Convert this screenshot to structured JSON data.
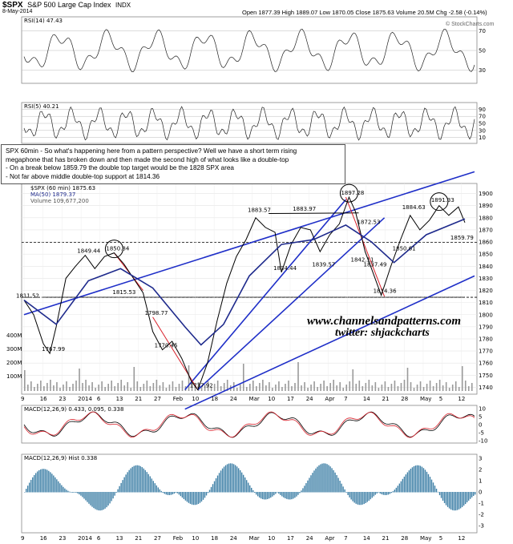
{
  "header": {
    "symbol": "$SPX",
    "name": "S&P 500 Large Cap Index",
    "exchange": "INDX",
    "date": "8-May-2014",
    "quote": "Open 1877.39  High 1889.07  Low 1870.05  Close 1875.63  Volume 20.5M  Chg -2.58 (-0.14%)",
    "copyright": "© StockCharts.com"
  },
  "panels": {
    "rsi14": "RSI(14) 47.43",
    "rsi5": "RSI(5) 40.21",
    "price_legend": "$SPX (60 min) 1875.63",
    "ma_legend": "MA(50) 1879.37",
    "vol_legend": "Volume 109,677,200",
    "macd_legend": "MACD(12,26,9) 0.433, 0.095, 0.338",
    "hist_legend": "MACD(12,26,9) Hist 0.338"
  },
  "annotation": {
    "line1": "SPX 60min - So what's happening here from a pattern perspective? Well we have a short term rising",
    "line2": "megaphone that has broken down and then made the second high of what looks like a double-top",
    "line3": "- On a break below 1859.79 the double top target would be the 1828 SPX area",
    "line4": "- Not far above middle double-top support at 1814.36"
  },
  "watermark": {
    "site": "www.channelsandpatterns.com",
    "twitter": "twitter: shjackcharts"
  },
  "colors": {
    "price": "#000000",
    "ma": "#1e2a8c",
    "trend": "#1f2fc8",
    "red": "#d9202a",
    "rsi_green": "#3b7d3b",
    "rsi_red": "#8a3d3d",
    "hist": "#3d7fa6"
  },
  "chart_data": {
    "type": "line",
    "title": "$SPX (60 min)",
    "price_axis": [
      "1900",
      "1890",
      "1880",
      "1870",
      "1860",
      "1850",
      "1840",
      "1830",
      "1820",
      "1810",
      "1800",
      "1790",
      "1780",
      "1770",
      "1760",
      "1750",
      "1740"
    ],
    "ylim": [
      1737,
      1905
    ],
    "x_ticks": [
      "9",
      "16",
      "23",
      "2014",
      "6",
      "13",
      "21",
      "27",
      "Feb",
      "10",
      "18",
      "24",
      "Mar",
      "10",
      "17",
      "24",
      "Apr",
      "7",
      "14",
      "21",
      "28",
      "May",
      "5",
      "12"
    ],
    "price_labels": [
      "1811.52",
      "1849.44",
      "1850.84",
      "1815.53",
      "1798.77",
      "1770.45",
      "1767.99",
      "1737.92",
      "1883.57",
      "1883.97",
      "1897.28",
      "1834.44",
      "1839.57",
      "1842.11",
      "1872.53",
      "1837.49",
      "1814.36",
      "1850.61",
      "1884.63",
      "1891.33",
      "1859.79"
    ],
    "volume_axis": [
      "400M",
      "300M",
      "200M",
      "100M"
    ],
    "rsi_levels": [
      "70",
      "50",
      "30"
    ],
    "rsi5_levels": [
      "90",
      "70",
      "50",
      "30",
      "10"
    ],
    "macd_axis": [
      "10",
      "5",
      "0",
      "-5",
      "-10"
    ],
    "hist_axis": [
      "3",
      "2",
      "1",
      "0",
      "-1",
      "-2",
      "-3"
    ],
    "price_series": [
      {
        "x": 0,
        "y": 1812
      },
      {
        "x": 3,
        "y": 1800
      },
      {
        "x": 6,
        "y": 1776
      },
      {
        "x": 8,
        "y": 1768
      },
      {
        "x": 10,
        "y": 1790
      },
      {
        "x": 13,
        "y": 1830
      },
      {
        "x": 16,
        "y": 1840
      },
      {
        "x": 19,
        "y": 1849
      },
      {
        "x": 22,
        "y": 1838
      },
      {
        "x": 25,
        "y": 1848
      },
      {
        "x": 28,
        "y": 1851
      },
      {
        "x": 31,
        "y": 1842
      },
      {
        "x": 34,
        "y": 1830
      },
      {
        "x": 37,
        "y": 1818
      },
      {
        "x": 40,
        "y": 1786
      },
      {
        "x": 43,
        "y": 1771
      },
      {
        "x": 46,
        "y": 1778
      },
      {
        "x": 49,
        "y": 1764
      },
      {
        "x": 52,
        "y": 1745
      },
      {
        "x": 54,
        "y": 1738
      },
      {
        "x": 57,
        "y": 1760
      },
      {
        "x": 60,
        "y": 1795
      },
      {
        "x": 63,
        "y": 1826
      },
      {
        "x": 66,
        "y": 1848
      },
      {
        "x": 69,
        "y": 1862
      },
      {
        "x": 72,
        "y": 1880
      },
      {
        "x": 75,
        "y": 1872
      },
      {
        "x": 78,
        "y": 1868
      },
      {
        "x": 80,
        "y": 1835
      },
      {
        "x": 83,
        "y": 1858
      },
      {
        "x": 86,
        "y": 1872
      },
      {
        "x": 89,
        "y": 1870
      },
      {
        "x": 92,
        "y": 1852
      },
      {
        "x": 95,
        "y": 1866
      },
      {
        "x": 98,
        "y": 1875
      },
      {
        "x": 101,
        "y": 1897
      },
      {
        "x": 103,
        "y": 1885
      },
      {
        "x": 106,
        "y": 1852
      },
      {
        "x": 108,
        "y": 1838
      },
      {
        "x": 111,
        "y": 1816
      },
      {
        "x": 114,
        "y": 1840
      },
      {
        "x": 117,
        "y": 1862
      },
      {
        "x": 120,
        "y": 1882
      },
      {
        "x": 123,
        "y": 1870
      },
      {
        "x": 126,
        "y": 1878
      },
      {
        "x": 129,
        "y": 1890
      },
      {
        "x": 132,
        "y": 1882
      },
      {
        "x": 135,
        "y": 1889
      },
      {
        "x": 137,
        "y": 1876
      }
    ],
    "ma_series": [
      {
        "x": 0,
        "y": 1812
      },
      {
        "x": 10,
        "y": 1792
      },
      {
        "x": 20,
        "y": 1828
      },
      {
        "x": 30,
        "y": 1838
      },
      {
        "x": 40,
        "y": 1822
      },
      {
        "x": 50,
        "y": 1790
      },
      {
        "x": 55,
        "y": 1775
      },
      {
        "x": 62,
        "y": 1792
      },
      {
        "x": 70,
        "y": 1832
      },
      {
        "x": 80,
        "y": 1858
      },
      {
        "x": 90,
        "y": 1862
      },
      {
        "x": 100,
        "y": 1874
      },
      {
        "x": 108,
        "y": 1860
      },
      {
        "x": 115,
        "y": 1843
      },
      {
        "x": 125,
        "y": 1866
      },
      {
        "x": 137,
        "y": 1879
      }
    ]
  }
}
